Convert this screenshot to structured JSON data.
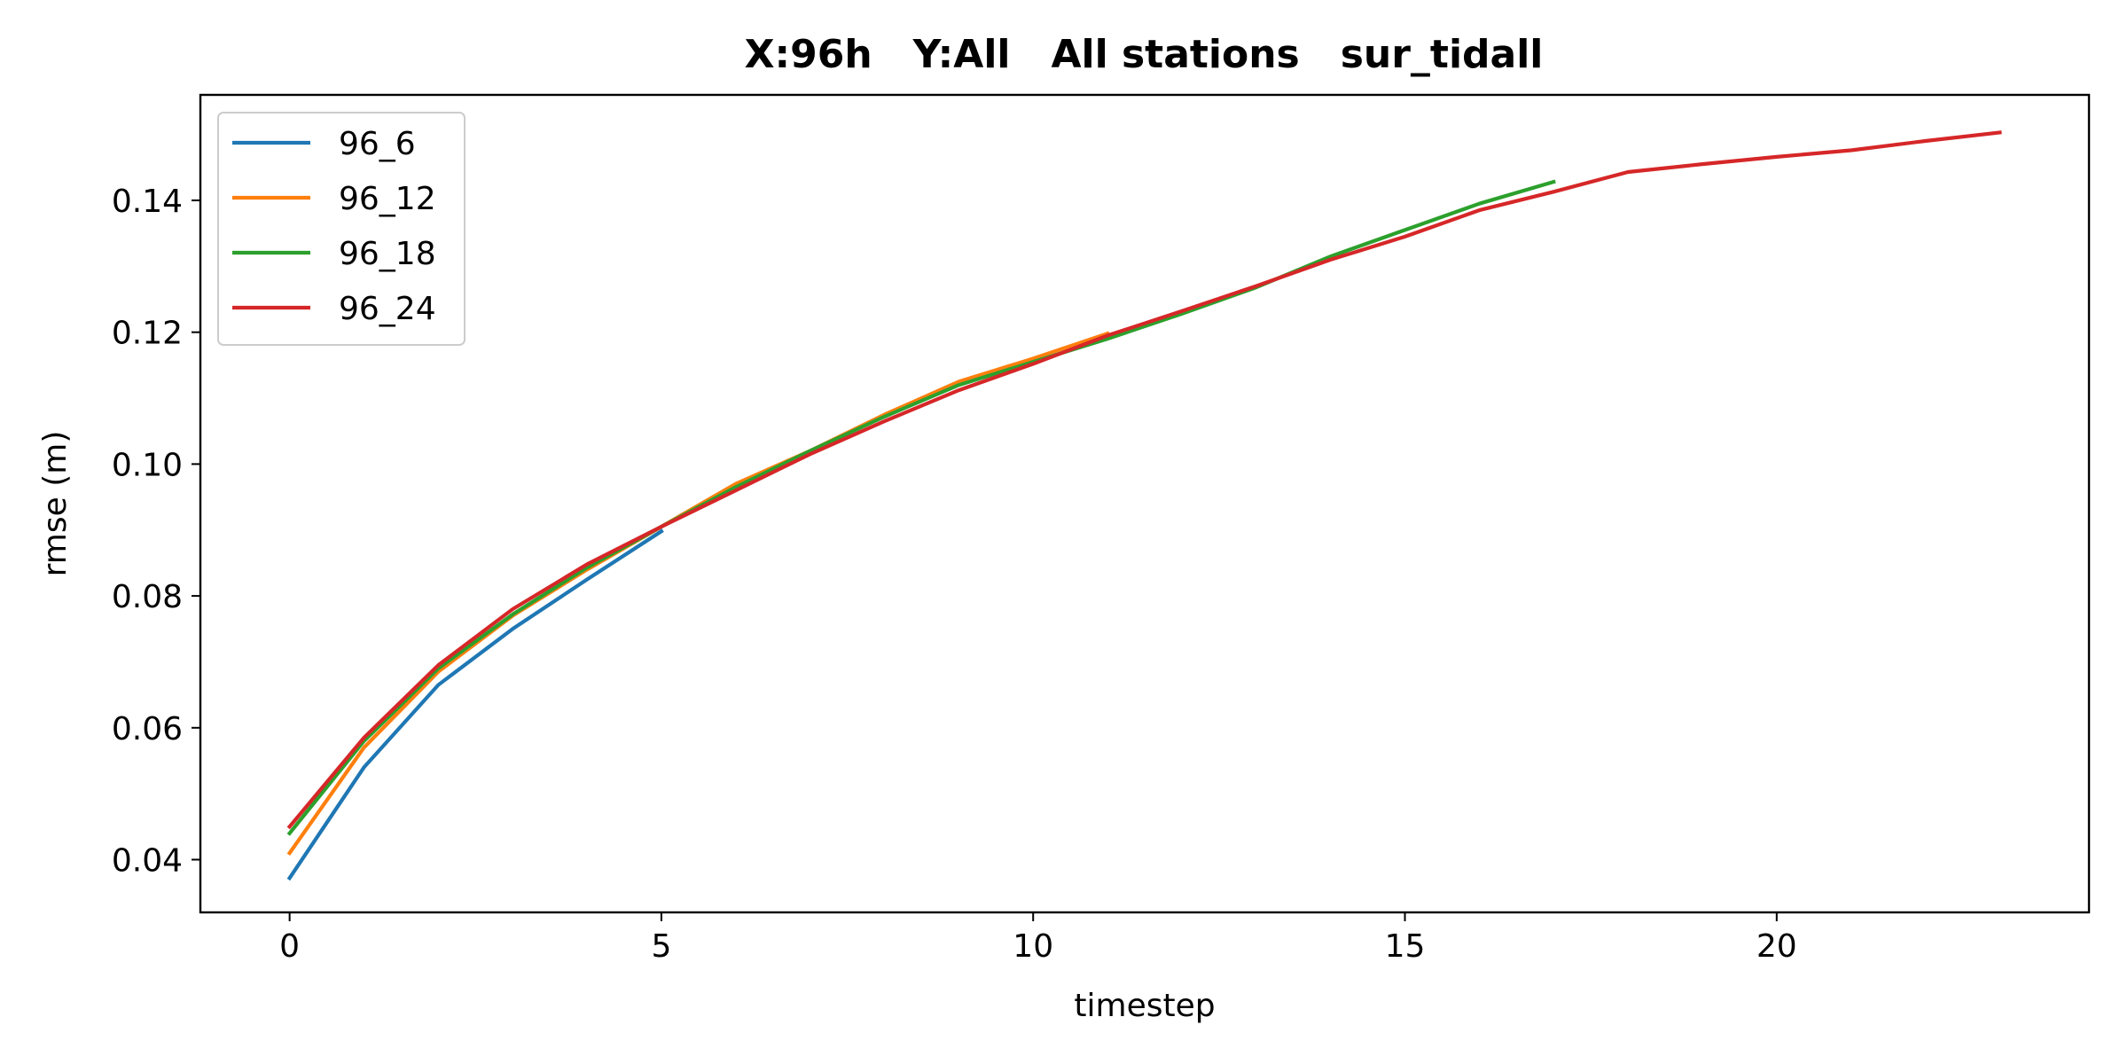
{
  "chart_data": {
    "type": "line",
    "title": "X:96h   Y:All   All stations   sur_tidall",
    "xlabel": "timestep",
    "ylabel": "rmse (m)",
    "xlim": [
      -1.2,
      24.2
    ],
    "ylim": [
      0.032,
      0.156
    ],
    "xticks": [
      0,
      5,
      10,
      15,
      20
    ],
    "xtick_labels": [
      "0",
      "5",
      "10",
      "15",
      "20"
    ],
    "yticks": [
      0.04,
      0.06,
      0.08,
      0.1,
      0.12,
      0.14
    ],
    "ytick_labels": [
      "0.04",
      "0.06",
      "0.08",
      "0.10",
      "0.12",
      "0.14"
    ],
    "grid": false,
    "legend_position": "upper-left",
    "series": [
      {
        "name": "96_6",
        "color": "#1f77b4",
        "x": [
          0,
          1,
          2,
          3,
          4,
          5
        ],
        "values": [
          0.0372,
          0.054,
          0.0665,
          0.075,
          0.0825,
          0.0898
        ]
      },
      {
        "name": "96_12",
        "color": "#ff7f0e",
        "x": [
          0,
          1,
          2,
          3,
          4,
          5,
          6,
          7,
          8,
          9,
          10,
          11
        ],
        "values": [
          0.041,
          0.057,
          0.0685,
          0.077,
          0.084,
          0.0905,
          0.097,
          0.102,
          0.1075,
          0.1125,
          0.116,
          0.1198
        ]
      },
      {
        "name": "96_18",
        "color": "#2ca02c",
        "x": [
          0,
          1,
          2,
          3,
          4,
          5,
          6,
          7,
          8,
          9,
          10,
          11,
          12,
          13,
          14,
          15,
          16,
          17
        ],
        "values": [
          0.044,
          0.058,
          0.069,
          0.0772,
          0.0843,
          0.0905,
          0.0965,
          0.102,
          0.1072,
          0.112,
          0.1155,
          0.119,
          0.1228,
          0.1268,
          0.1315,
          0.1355,
          0.1395,
          0.1428
        ]
      },
      {
        "name": "96_24",
        "color": "#d62728",
        "x": [
          0,
          1,
          2,
          3,
          4,
          5,
          6,
          7,
          8,
          9,
          10,
          11,
          12,
          13,
          14,
          15,
          16,
          17,
          18,
          19,
          20,
          21,
          22,
          23
        ],
        "values": [
          0.045,
          0.0585,
          0.0695,
          0.078,
          0.0848,
          0.0905,
          0.096,
          0.1015,
          0.1065,
          0.1112,
          0.1152,
          0.1195,
          0.1232,
          0.127,
          0.131,
          0.1345,
          0.1385,
          0.1413,
          0.1443,
          0.1455,
          0.1466,
          0.1476,
          0.149,
          0.1503
        ]
      }
    ]
  }
}
